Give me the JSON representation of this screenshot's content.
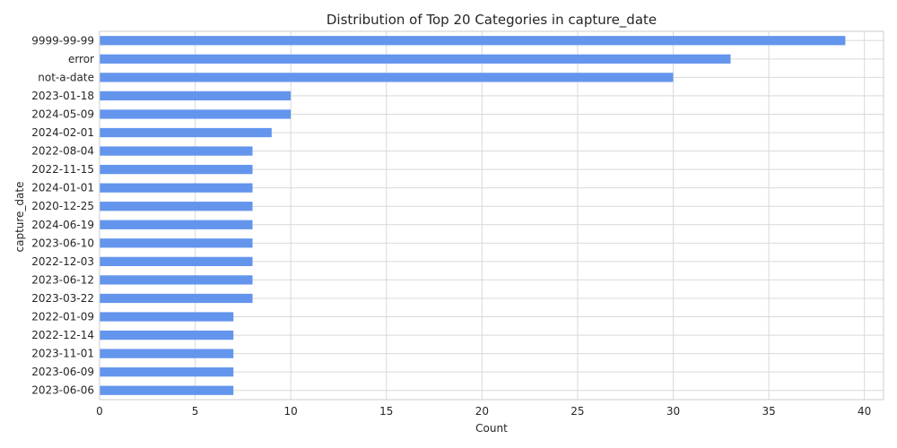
{
  "chart_data": {
    "type": "bar",
    "orientation": "horizontal",
    "title": "Distribution of Top 20 Categories in capture_date",
    "xlabel": "Count",
    "ylabel": "capture_date",
    "xlim": [
      0,
      41
    ],
    "xticks": [
      0,
      5,
      10,
      15,
      20,
      25,
      30,
      35,
      40
    ],
    "grid": true,
    "bar_color": "#6495ED",
    "categories": [
      "9999-99-99",
      "error",
      "not-a-date",
      "2023-01-18",
      "2024-05-09",
      "2024-02-01",
      "2022-08-04",
      "2022-11-15",
      "2024-01-01",
      "2020-12-25",
      "2024-06-19",
      "2023-06-10",
      "2022-12-03",
      "2023-06-12",
      "2023-03-22",
      "2022-01-09",
      "2022-12-14",
      "2023-11-01",
      "2023-06-09",
      "2023-06-06"
    ],
    "values": [
      39,
      33,
      30,
      10,
      10,
      9,
      8,
      8,
      8,
      8,
      8,
      8,
      8,
      8,
      8,
      7,
      7,
      7,
      7,
      7
    ]
  }
}
